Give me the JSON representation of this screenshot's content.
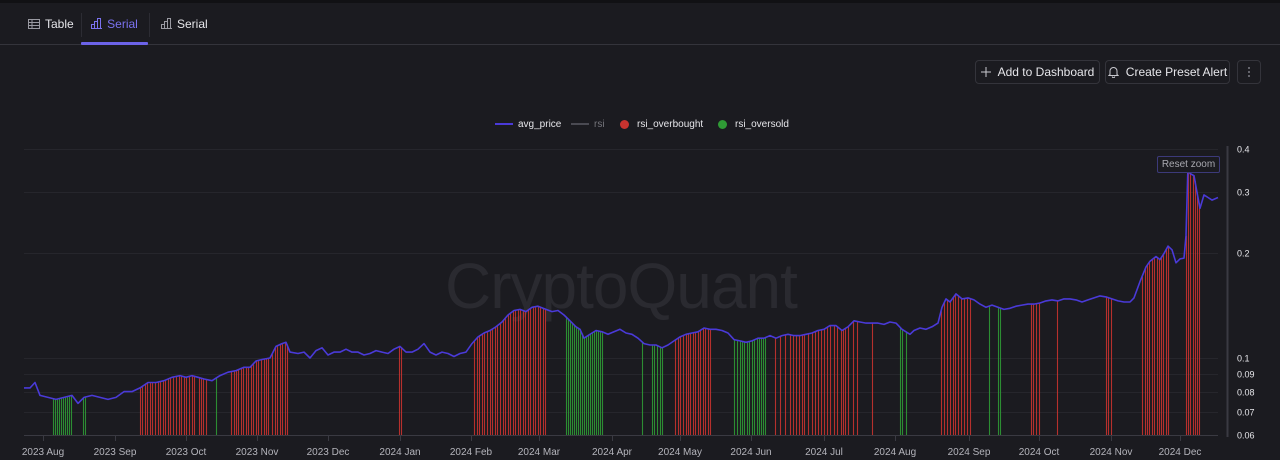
{
  "tabs": [
    {
      "label": "Table",
      "icon": "table-icon",
      "active": false
    },
    {
      "label": "Serial",
      "icon": "bar-chart-icon",
      "active": true
    },
    {
      "label": "Serial",
      "icon": "bar-chart-icon",
      "active": false
    }
  ],
  "toolbar": {
    "add_to_dashboard": "Add to Dashboard",
    "create_preset_alert": "Create Preset Alert",
    "more_icon": "vertical-ellipsis-icon"
  },
  "legend": [
    {
      "label": "avg_price",
      "type": "line",
      "color": "#4a3ad8",
      "hidden": false
    },
    {
      "label": "rsi",
      "type": "line",
      "color": "#4a4a52",
      "hidden": true
    },
    {
      "label": "rsi_overbought",
      "type": "dot",
      "color": "#c8332f",
      "hidden": false
    },
    {
      "label": "rsi_oversold",
      "type": "dot",
      "color": "#2f9a35",
      "hidden": false
    }
  ],
  "reset_zoom": "Reset zoom",
  "watermark": "CryptoQuant",
  "colors": {
    "background": "#1b1b20",
    "price_line": "#4a3ad8",
    "overbought": "#c8332f",
    "oversold": "#2f9a35",
    "grid": "#26262c",
    "accent": "#6c63e8"
  },
  "chart_data": {
    "type": "line",
    "title": "",
    "xlabel": "",
    "ylabel": "",
    "y_scale": "log",
    "ylim": [
      0.06,
      0.4
    ],
    "y_ticks": [
      0.4,
      0.3,
      0.2,
      0.1,
      0.09,
      0.08,
      0.07,
      0.06
    ],
    "x_ticks": [
      "2023 Aug",
      "2023 Sep",
      "2023 Oct",
      "2023 Nov",
      "2023 Dec",
      "2024 Jan",
      "2024 Feb",
      "2024 Mar",
      "2024 Apr",
      "2024 May",
      "2024 Jun",
      "2024 Jul",
      "2024 Aug",
      "2024 Sep",
      "2024 Oct",
      "2024 Nov",
      "2024 Dec"
    ],
    "grid": true,
    "legend_position": "top",
    "series": [
      {
        "name": "avg_price",
        "approx_monthly_values": {
          "2023 Aug": 0.078,
          "2023 Sep": 0.077,
          "2023 Oct": 0.088,
          "2023 Nov": 0.1,
          "2023 Dec": 0.104,
          "2024 Jan": 0.105,
          "2024 Feb": 0.118,
          "2024 Mar": 0.14,
          "2024 Apr": 0.122,
          "2024 May": 0.128,
          "2024 Jun": 0.122,
          "2024 Jul": 0.13,
          "2024 Aug": 0.125,
          "2024 Sep": 0.155,
          "2024 Oct": 0.155,
          "2024 Nov": 0.165,
          "2024 Dec": 0.32
        },
        "points": [
          [
            24,
            0.082
          ],
          [
            30,
            0.082
          ],
          [
            35,
            0.085
          ],
          [
            40,
            0.078
          ],
          [
            48,
            0.077
          ],
          [
            56,
            0.076
          ],
          [
            64,
            0.077
          ],
          [
            72,
            0.078
          ],
          [
            78,
            0.074
          ],
          [
            84,
            0.077
          ],
          [
            92,
            0.078
          ],
          [
            100,
            0.077
          ],
          [
            108,
            0.076
          ],
          [
            116,
            0.077
          ],
          [
            124,
            0.08
          ],
          [
            132,
            0.08
          ],
          [
            140,
            0.082
          ],
          [
            148,
            0.085
          ],
          [
            156,
            0.085
          ],
          [
            164,
            0.086
          ],
          [
            172,
            0.088
          ],
          [
            180,
            0.089
          ],
          [
            186,
            0.088
          ],
          [
            192,
            0.089
          ],
          [
            198,
            0.088
          ],
          [
            204,
            0.087
          ],
          [
            212,
            0.086
          ],
          [
            220,
            0.089
          ],
          [
            228,
            0.091
          ],
          [
            236,
            0.092
          ],
          [
            244,
            0.094
          ],
          [
            250,
            0.094
          ],
          [
            256,
            0.098
          ],
          [
            262,
            0.099
          ],
          [
            270,
            0.1
          ],
          [
            276,
            0.108
          ],
          [
            282,
            0.11
          ],
          [
            286,
            0.111
          ],
          [
            290,
            0.104
          ],
          [
            298,
            0.103
          ],
          [
            304,
            0.104
          ],
          [
            310,
            0.1
          ],
          [
            316,
            0.105
          ],
          [
            322,
            0.107
          ],
          [
            328,
            0.102
          ],
          [
            334,
            0.104
          ],
          [
            340,
            0.104
          ],
          [
            346,
            0.106
          ],
          [
            352,
            0.104
          ],
          [
            358,
            0.104
          ],
          [
            364,
            0.102
          ],
          [
            370,
            0.103
          ],
          [
            376,
            0.105
          ],
          [
            382,
            0.104
          ],
          [
            388,
            0.103
          ],
          [
            394,
            0.106
          ],
          [
            400,
            0.108
          ],
          [
            406,
            0.104
          ],
          [
            412,
            0.104
          ],
          [
            418,
            0.106
          ],
          [
            424,
            0.11
          ],
          [
            430,
            0.104
          ],
          [
            436,
            0.102
          ],
          [
            442,
            0.104
          ],
          [
            448,
            0.103
          ],
          [
            454,
            0.101
          ],
          [
            460,
            0.103
          ],
          [
            466,
            0.104
          ],
          [
            472,
            0.11
          ],
          [
            478,
            0.115
          ],
          [
            484,
            0.118
          ],
          [
            490,
            0.12
          ],
          [
            496,
            0.123
          ],
          [
            502,
            0.127
          ],
          [
            508,
            0.133
          ],
          [
            514,
            0.137
          ],
          [
            520,
            0.138
          ],
          [
            526,
            0.136
          ],
          [
            532,
            0.14
          ],
          [
            538,
            0.141
          ],
          [
            546,
            0.138
          ],
          [
            552,
            0.136
          ],
          [
            558,
            0.137
          ],
          [
            564,
            0.133
          ],
          [
            570,
            0.128
          ],
          [
            576,
            0.123
          ],
          [
            580,
            0.121
          ],
          [
            584,
            0.114
          ],
          [
            588,
            0.116
          ],
          [
            592,
            0.118
          ],
          [
            596,
            0.12
          ],
          [
            602,
            0.119
          ],
          [
            608,
            0.117
          ],
          [
            614,
            0.119
          ],
          [
            620,
            0.121
          ],
          [
            626,
            0.118
          ],
          [
            632,
            0.117
          ],
          [
            638,
            0.114
          ],
          [
            644,
            0.11
          ],
          [
            650,
            0.109
          ],
          [
            656,
            0.109
          ],
          [
            662,
            0.107
          ],
          [
            668,
            0.109
          ],
          [
            674,
            0.112
          ],
          [
            680,
            0.115
          ],
          [
            686,
            0.117
          ],
          [
            692,
            0.118
          ],
          [
            698,
            0.119
          ],
          [
            704,
            0.122
          ],
          [
            710,
            0.121
          ],
          [
            716,
            0.121
          ],
          [
            722,
            0.12
          ],
          [
            728,
            0.118
          ],
          [
            734,
            0.113
          ],
          [
            740,
            0.112
          ],
          [
            746,
            0.111
          ],
          [
            752,
            0.112
          ],
          [
            758,
            0.114
          ],
          [
            764,
            0.114
          ],
          [
            770,
            0.116
          ],
          [
            776,
            0.114
          ],
          [
            782,
            0.116
          ],
          [
            788,
            0.117
          ],
          [
            794,
            0.116
          ],
          [
            800,
            0.116
          ],
          [
            806,
            0.117
          ],
          [
            812,
            0.118
          ],
          [
            818,
            0.12
          ],
          [
            824,
            0.121
          ],
          [
            830,
            0.124
          ],
          [
            836,
            0.124
          ],
          [
            842,
            0.12
          ],
          [
            848,
            0.123
          ],
          [
            854,
            0.128
          ],
          [
            860,
            0.127
          ],
          [
            866,
            0.126
          ],
          [
            872,
            0.126
          ],
          [
            878,
            0.126
          ],
          [
            884,
            0.125
          ],
          [
            890,
            0.127
          ],
          [
            896,
            0.126
          ],
          [
            902,
            0.121
          ],
          [
            906,
            0.119
          ],
          [
            910,
            0.117
          ],
          [
            914,
            0.12
          ],
          [
            920,
            0.122
          ],
          [
            926,
            0.121
          ],
          [
            932,
            0.123
          ],
          [
            938,
            0.126
          ],
          [
            942,
            0.14
          ],
          [
            946,
            0.148
          ],
          [
            950,
            0.145
          ],
          [
            956,
            0.153
          ],
          [
            962,
            0.148
          ],
          [
            968,
            0.149
          ],
          [
            974,
            0.147
          ],
          [
            980,
            0.143
          ],
          [
            986,
            0.14
          ],
          [
            992,
            0.142
          ],
          [
            998,
            0.14
          ],
          [
            1004,
            0.138
          ],
          [
            1010,
            0.139
          ],
          [
            1016,
            0.141
          ],
          [
            1022,
            0.142
          ],
          [
            1028,
            0.143
          ],
          [
            1034,
            0.143
          ],
          [
            1040,
            0.144
          ],
          [
            1046,
            0.146
          ],
          [
            1052,
            0.147
          ],
          [
            1058,
            0.146
          ],
          [
            1064,
            0.148
          ],
          [
            1070,
            0.148
          ],
          [
            1076,
            0.147
          ],
          [
            1082,
            0.145
          ],
          [
            1088,
            0.147
          ],
          [
            1094,
            0.149
          ],
          [
            1100,
            0.151
          ],
          [
            1106,
            0.15
          ],
          [
            1112,
            0.148
          ],
          [
            1118,
            0.146
          ],
          [
            1124,
            0.145
          ],
          [
            1130,
            0.145
          ],
          [
            1134,
            0.149
          ],
          [
            1140,
            0.166
          ],
          [
            1146,
            0.183
          ],
          [
            1150,
            0.19
          ],
          [
            1156,
            0.196
          ],
          [
            1160,
            0.192
          ],
          [
            1164,
            0.2
          ],
          [
            1168,
            0.21
          ],
          [
            1172,
            0.205
          ],
          [
            1176,
            0.188
          ],
          [
            1180,
            0.193
          ],
          [
            1184,
            0.194
          ],
          [
            1186,
            0.225
          ],
          [
            1188,
            0.36
          ],
          [
            1190,
            0.34
          ],
          [
            1194,
            0.335
          ],
          [
            1197,
            0.3
          ],
          [
            1200,
            0.27
          ],
          [
            1204,
            0.295
          ],
          [
            1208,
            0.29
          ],
          [
            1212,
            0.285
          ],
          [
            1218,
            0.29
          ]
        ]
      },
      {
        "name": "rsi_overbought",
        "bar_x": [
          140,
          142,
          145,
          147,
          150,
          152,
          155,
          158,
          160,
          163,
          165,
          168,
          170,
          173,
          176,
          179,
          181,
          184,
          186,
          189,
          192,
          194,
          199,
          201,
          203,
          206,
          231,
          234,
          236,
          238,
          241,
          243,
          246,
          248,
          251,
          253,
          256,
          258,
          261,
          264,
          266,
          268,
          272,
          275,
          277,
          280,
          282,
          285,
          287,
          399,
          401,
          474,
          477,
          479,
          482,
          484,
          487,
          490,
          492,
          495,
          497,
          500,
          503,
          505,
          508,
          510,
          513,
          515,
          518,
          520,
          523,
          525,
          528,
          530,
          533,
          535,
          538,
          540,
          543,
          545,
          675,
          678,
          680,
          683,
          686,
          688,
          690,
          693,
          695,
          698,
          700,
          703,
          705,
          708,
          710,
          775,
          780,
          785,
          790,
          793,
          796,
          799,
          802,
          804,
          808,
          812,
          815,
          818,
          821,
          824,
          827,
          830,
          834,
          837,
          841,
          843,
          845,
          848,
          853,
          857,
          872,
          941,
          944,
          947,
          950,
          953,
          955,
          958,
          961,
          964,
          967,
          970,
          1031,
          1033,
          1036,
          1039,
          1057,
          1106,
          1108,
          1111,
          1142,
          1145,
          1147,
          1149,
          1152,
          1154,
          1157,
          1159,
          1161,
          1163,
          1166,
          1168,
          1186,
          1188,
          1190,
          1193,
          1195,
          1197,
          1199
        ]
      },
      {
        "name": "rsi_oversold",
        "bar_x": [
          53,
          55,
          57,
          59,
          61,
          63,
          65,
          67,
          69,
          71,
          83,
          85,
          216,
          566,
          568,
          570,
          572,
          574,
          576,
          578,
          580,
          582,
          584,
          586,
          588,
          590,
          592,
          594,
          596,
          598,
          600,
          602,
          642,
          652,
          654,
          657,
          660,
          662,
          734,
          737,
          740,
          742,
          744,
          747,
          749,
          752,
          754,
          757,
          759,
          761,
          763,
          765,
          900,
          902,
          906,
          989,
          998,
          1000
        ]
      }
    ]
  }
}
